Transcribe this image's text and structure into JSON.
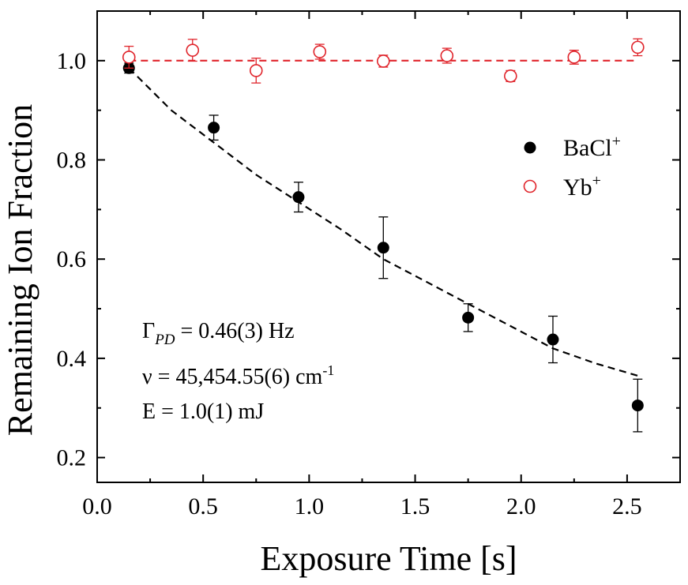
{
  "chart_data": {
    "type": "scatter",
    "xlabel": "Exposure Time [s]",
    "ylabel": "Remaining Ion Fraction",
    "xlim": [
      0.0,
      2.75
    ],
    "ylim": [
      0.15,
      1.1
    ],
    "x_ticks": [
      0.0,
      0.5,
      1.0,
      1.5,
      2.0,
      2.5
    ],
    "x_tick_labels": [
      "0.0",
      "0.5",
      "1.0",
      "1.5",
      "2.0",
      "2.5"
    ],
    "y_ticks": [
      0.2,
      0.4,
      0.6,
      0.8,
      1.0
    ],
    "y_tick_labels": [
      "0.2",
      "0.4",
      "0.6",
      "0.8",
      "1.0"
    ],
    "grid": false,
    "legend_position": "right",
    "series": [
      {
        "name": "BaCl",
        "name_superscript": "+",
        "marker": "filled-circle",
        "color": "#000000",
        "x": [
          0.15,
          0.55,
          0.95,
          1.35,
          1.75,
          2.15,
          2.55
        ],
        "y": [
          0.985,
          0.865,
          0.725,
          0.623,
          0.482,
          0.438,
          0.305
        ],
        "yerr": [
          0.01,
          0.025,
          0.03,
          0.062,
          0.028,
          0.047,
          0.053
        ]
      },
      {
        "name": "Yb",
        "name_superscript": "+",
        "marker": "open-circle",
        "color": "#e0242b",
        "x": [
          0.15,
          0.45,
          0.75,
          1.05,
          1.35,
          1.65,
          1.95,
          2.25,
          2.55
        ],
        "y": [
          1.007,
          1.021,
          0.98,
          1.018,
          0.999,
          1.01,
          0.969,
          1.007,
          1.027
        ],
        "yerr": [
          0.022,
          0.022,
          0.025,
          0.015,
          0.012,
          0.015,
          0.011,
          0.014,
          0.017
        ]
      }
    ],
    "fits": [
      {
        "series": "BaCl",
        "kind": "exponential decay",
        "color": "#000000",
        "dash": true,
        "x": [
          0.15,
          0.35,
          0.55,
          0.75,
          0.95,
          1.15,
          1.35,
          1.55,
          1.75,
          1.95,
          2.15,
          2.35,
          2.55
        ],
        "y": [
          0.985,
          0.9,
          0.835,
          0.77,
          0.715,
          0.66,
          0.6,
          0.555,
          0.51,
          0.465,
          0.42,
          0.39,
          0.365
        ]
      },
      {
        "series": "Yb",
        "kind": "constant",
        "color": "#e0242b",
        "dash": true,
        "x": [
          0.15,
          2.55
        ],
        "y": [
          1.0,
          1.0
        ]
      }
    ],
    "annotations": {
      "gamma_symbol": "Γ",
      "gamma_subscript": "PD",
      "gamma_value": " = 0.46(3) Hz",
      "nu_text": "ν = 45,454.55(6) cm",
      "nu_superscript": "-1",
      "energy_text": "E = 1.0(1) mJ"
    }
  }
}
